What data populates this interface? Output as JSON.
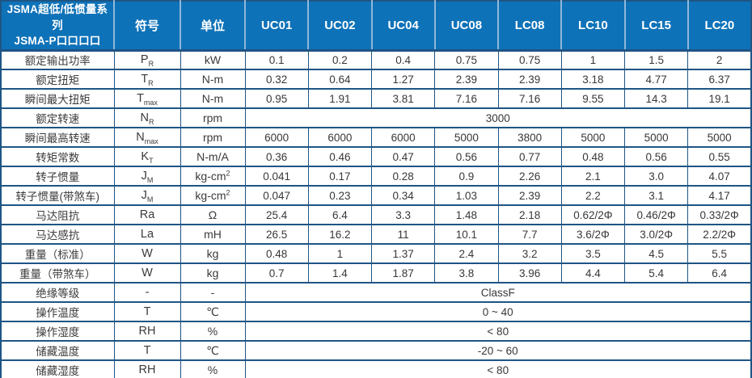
{
  "colors": {
    "header_bg": "#0e72b8",
    "border": "#1e5584",
    "header_separator": "#8fb7da",
    "text": "#3a3a3a",
    "header_text": "#ffffff"
  },
  "table": {
    "header": {
      "title_line1": "JSMA超低/低惯量系列",
      "title_line2": "JSMA-P口口口口",
      "symbol_col": "符号",
      "unit_col": "单位",
      "models": [
        "UC01",
        "UC02",
        "UC04",
        "UC08",
        "LC08",
        "LC10",
        "LC15",
        "LC20"
      ]
    },
    "rows": [
      {
        "label": "额定输出功率",
        "symbol": "P",
        "sub": "R",
        "unit": "kW",
        "values": [
          "0.1",
          "0.2",
          "0.4",
          "0.75",
          "0.75",
          "1",
          "1.5",
          "2"
        ]
      },
      {
        "label": "额定扭矩",
        "symbol": "T",
        "sub": "R",
        "unit": "N-m",
        "values": [
          "0.32",
          "0.64",
          "1.27",
          "2.39",
          "2.39",
          "3.18",
          "4.77",
          "6.37"
        ]
      },
      {
        "label": "瞬间最大扭矩",
        "symbol": "T",
        "sub": "max",
        "unit": "N-m",
        "values": [
          "0.95",
          "1.91",
          "3.81",
          "7.16",
          "7.16",
          "9.55",
          "14.3",
          "19.1"
        ]
      },
      {
        "label": "额定转速",
        "symbol": "N",
        "sub": "R",
        "unit": "rpm",
        "merged": "3000"
      },
      {
        "label": "瞬间最高转速",
        "symbol": "N",
        "sub": "max",
        "unit": "rpm",
        "values": [
          "6000",
          "6000",
          "6000",
          "5000",
          "3800",
          "5000",
          "5000",
          "5000"
        ]
      },
      {
        "label": "转矩常数",
        "symbol": "K",
        "sub": "T",
        "unit": "N-m/A",
        "values": [
          "0.36",
          "0.46",
          "0.47",
          "0.56",
          "0.77",
          "0.48",
          "0.56",
          "0.55"
        ]
      },
      {
        "label": "转子惯量",
        "symbol": "J",
        "sub": "M",
        "unit": "kg-cm",
        "unit_sup": "2",
        "values": [
          "0.041",
          "0.17",
          "0.28",
          "0.9",
          "2.26",
          "2.1",
          "3.0",
          "4.07"
        ]
      },
      {
        "label": "转子惯量(带煞车)",
        "symbol": "J",
        "sub": "M",
        "unit": "kg-cm",
        "unit_sup": "2",
        "values": [
          "0.047",
          "0.23",
          "0.34",
          "1.03",
          "2.39",
          "2.2",
          "3.1",
          "4.17"
        ]
      },
      {
        "label": "马达阻抗",
        "symbol": "Ra",
        "unit": "Ω",
        "values": [
          "25.4",
          "6.4",
          "3.3",
          "1.48",
          "2.18",
          "0.62/2Φ",
          "0.46/2Φ",
          "0.33/2Φ"
        ]
      },
      {
        "label": "马达感抗",
        "symbol": "La",
        "unit": "mH",
        "values": [
          "26.5",
          "16.2",
          "11",
          "10.1",
          "7.7",
          "3.6/2Φ",
          "3.0/2Φ",
          "2.2/2Φ"
        ]
      },
      {
        "label": "重量（标准）",
        "symbol": "W",
        "unit": "kg",
        "values": [
          "0.48",
          "1",
          "1.37",
          "2.4",
          "3.2",
          "3.5",
          "4.5",
          "5.5"
        ]
      },
      {
        "label": "重量（带煞车）",
        "symbol": "W",
        "unit": "kg",
        "values": [
          "0.7",
          "1.4",
          "1.87",
          "3.8",
          "3.96",
          "4.4",
          "5.4",
          "6.4"
        ]
      },
      {
        "label": "绝缘等级",
        "symbol": "-",
        "unit": "-",
        "merged": "ClassF"
      },
      {
        "label": "操作温度",
        "symbol": "T",
        "unit": "℃",
        "merged": "0 ~ 40"
      },
      {
        "label": "操作湿度",
        "symbol": "RH",
        "unit": "%",
        "merged": "< 80"
      },
      {
        "label": "储藏温度",
        "symbol": "T",
        "unit": "℃",
        "merged": "-20 ~ 60"
      },
      {
        "label": "储藏湿度",
        "symbol": "RH",
        "unit": "%",
        "merged": "< 80"
      }
    ]
  }
}
